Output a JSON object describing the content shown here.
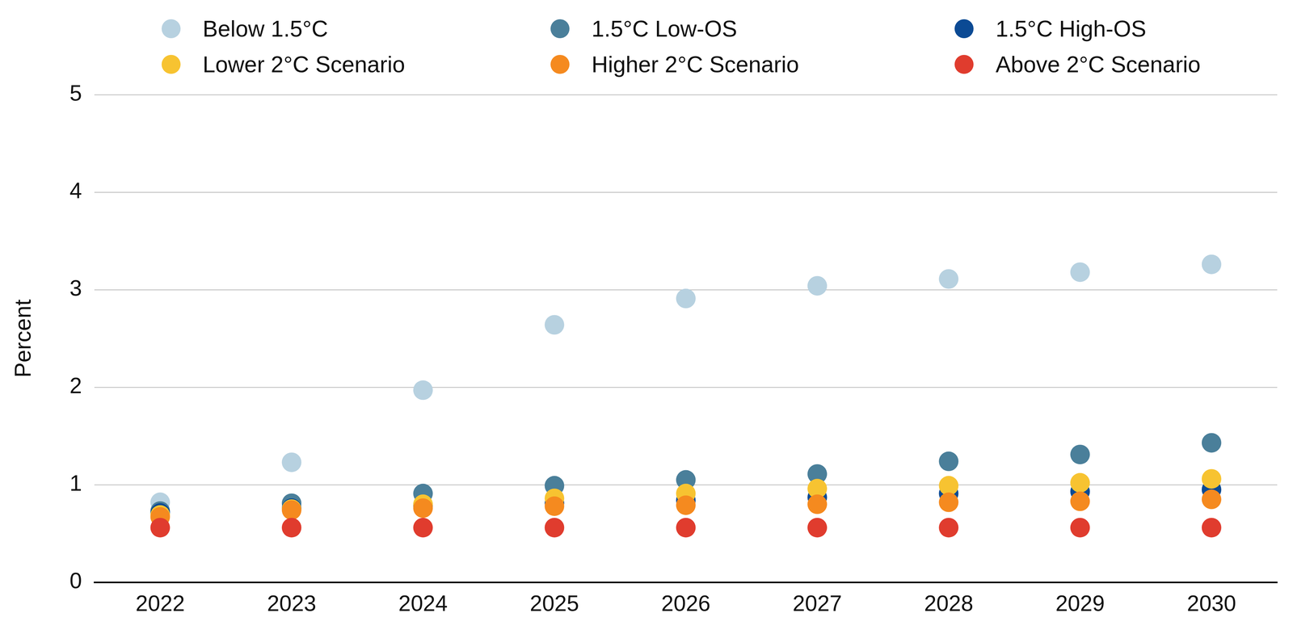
{
  "chart_data": {
    "type": "scatter",
    "y_label": "Percent",
    "categories": [
      "2022",
      "2023",
      "2024",
      "2025",
      "2026",
      "2027",
      "2028",
      "2029",
      "2030"
    ],
    "ylim": [
      0,
      5
    ],
    "yticks": [
      0,
      1,
      2,
      3,
      4,
      5
    ],
    "grid": true,
    "legend": "top",
    "marker": "circle",
    "series": [
      {
        "name": "Below 1.5°C",
        "color": "#b7d1e0",
        "values": [
          0.82,
          1.23,
          1.97,
          2.64,
          2.91,
          3.04,
          3.11,
          3.18,
          3.26
        ]
      },
      {
        "name": "1.5°C Low-OS",
        "color": "#4a7f9a",
        "values": [
          0.73,
          0.81,
          0.91,
          0.99,
          1.05,
          1.11,
          1.24,
          1.31,
          1.43
        ]
      },
      {
        "name": "1.5°C High-OS",
        "color": "#0b4a94",
        "values": [
          0.71,
          0.76,
          0.79,
          0.81,
          0.84,
          0.87,
          0.91,
          0.93,
          0.95
        ]
      },
      {
        "name": "Lower 2°C Scenario",
        "color": "#f7c331",
        "values": [
          0.69,
          0.75,
          0.8,
          0.86,
          0.91,
          0.96,
          0.99,
          1.02,
          1.06
        ]
      },
      {
        "name": "Higher 2°C Scenario",
        "color": "#f58a1f",
        "values": [
          0.67,
          0.74,
          0.76,
          0.78,
          0.79,
          0.8,
          0.82,
          0.83,
          0.85
        ]
      },
      {
        "name": "Above 2°C Scenario",
        "color": "#e03c2e",
        "values": [
          0.56,
          0.56,
          0.56,
          0.56,
          0.56,
          0.56,
          0.56,
          0.56,
          0.56
        ]
      }
    ]
  }
}
